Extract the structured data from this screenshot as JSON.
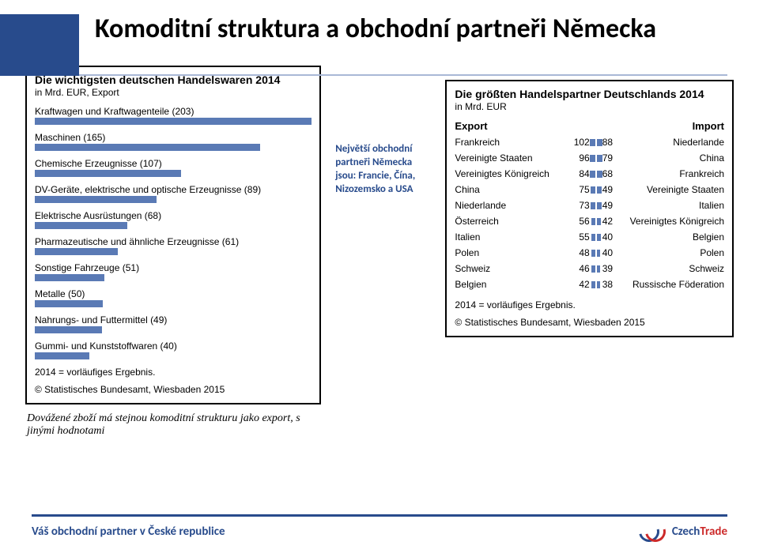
{
  "title": "Komoditní struktura a obchodní partneři Německa",
  "left_panel": {
    "title": "Die wichtigsten deutschen Handelswaren 2014",
    "subtitle": "in Mrd. EUR, Export",
    "bars": [
      {
        "label": "Kraftwagen und Kraftwagenteile (203)",
        "value": 203
      },
      {
        "label": "Maschinen (165)",
        "value": 165
      },
      {
        "label": "Chemische Erzeugnisse (107)",
        "value": 107
      },
      {
        "label": "DV-Geräte, elektrische und optische Erzeugnisse (89)",
        "value": 89
      },
      {
        "label": "Elektrische Ausrüstungen (68)",
        "value": 68
      },
      {
        "label": "Pharmazeutische und ähnliche Erzeugnisse (61)",
        "value": 61
      },
      {
        "label": "Sonstige Fahrzeuge (51)",
        "value": 51
      },
      {
        "label": "Metalle (50)",
        "value": 50
      },
      {
        "label": "Nahrungs- und Futtermittel  (49)",
        "value": 49
      },
      {
        "label": "Gummi- und Kunststoffwaren (40)",
        "value": 40
      }
    ],
    "max_value": 203,
    "bar_color": "#5a7ab5",
    "note": "2014 = vorläufiges Ergebnis.",
    "credit": "© Statistisches Bundesamt, Wiesbaden 2015"
  },
  "mid_text": "Největší obchodní partneři Německa jsou: Francie, Čína, Nizozemsko a USA",
  "right_panel": {
    "title": "Die größten Handelspartner Deutschlands 2014",
    "subtitle": "in Mrd. EUR",
    "h_export": "Export",
    "h_import": "Import",
    "rows": [
      {
        "exp_c": "Frankreich",
        "exp_v": 102,
        "imp_v": 88,
        "imp_c": "Niederlande"
      },
      {
        "exp_c": "Vereinigte Staaten",
        "exp_v": 96,
        "imp_v": 79,
        "imp_c": "China"
      },
      {
        "exp_c": "Vereinigtes Königreich",
        "exp_v": 84,
        "imp_v": 68,
        "imp_c": "Frankreich"
      },
      {
        "exp_c": "China",
        "exp_v": 75,
        "imp_v": 49,
        "imp_c": "Vereinigte Staaten"
      },
      {
        "exp_c": "Niederlande",
        "exp_v": 73,
        "imp_v": 49,
        "imp_c": "Italien"
      },
      {
        "exp_c": "Österreich",
        "exp_v": 56,
        "imp_v": 42,
        "imp_c": "Vereinigtes Königreich"
      },
      {
        "exp_c": "Italien",
        "exp_v": 55,
        "imp_v": 40,
        "imp_c": "Belgien"
      },
      {
        "exp_c": "Polen",
        "exp_v": 48,
        "imp_v": 40,
        "imp_c": "Polen"
      },
      {
        "exp_c": "Schweiz",
        "exp_v": 46,
        "imp_v": 39,
        "imp_c": "Schweiz"
      },
      {
        "exp_c": "Belgien",
        "exp_v": 42,
        "imp_v": 38,
        "imp_c": "Russische Föderation"
      }
    ],
    "max_exp": 102,
    "max_imp": 88,
    "bar_color": "#5a7ab5",
    "note": "2014 = vorläufiges Ergebnis.",
    "credit": "© Statistisches Bundesamt, Wiesbaden 2015"
  },
  "below_note": "Dovážené zboží má stejnou komoditní strukturu jako export, s jinými hodnotami",
  "footer_text": "Váš obchodní partner v České republice",
  "logo": {
    "czech": "Czech",
    "trade": "Trade"
  },
  "colors": {
    "accent": "#284b8c",
    "bar": "#5a7ab5",
    "red": "#cc2a2a"
  }
}
